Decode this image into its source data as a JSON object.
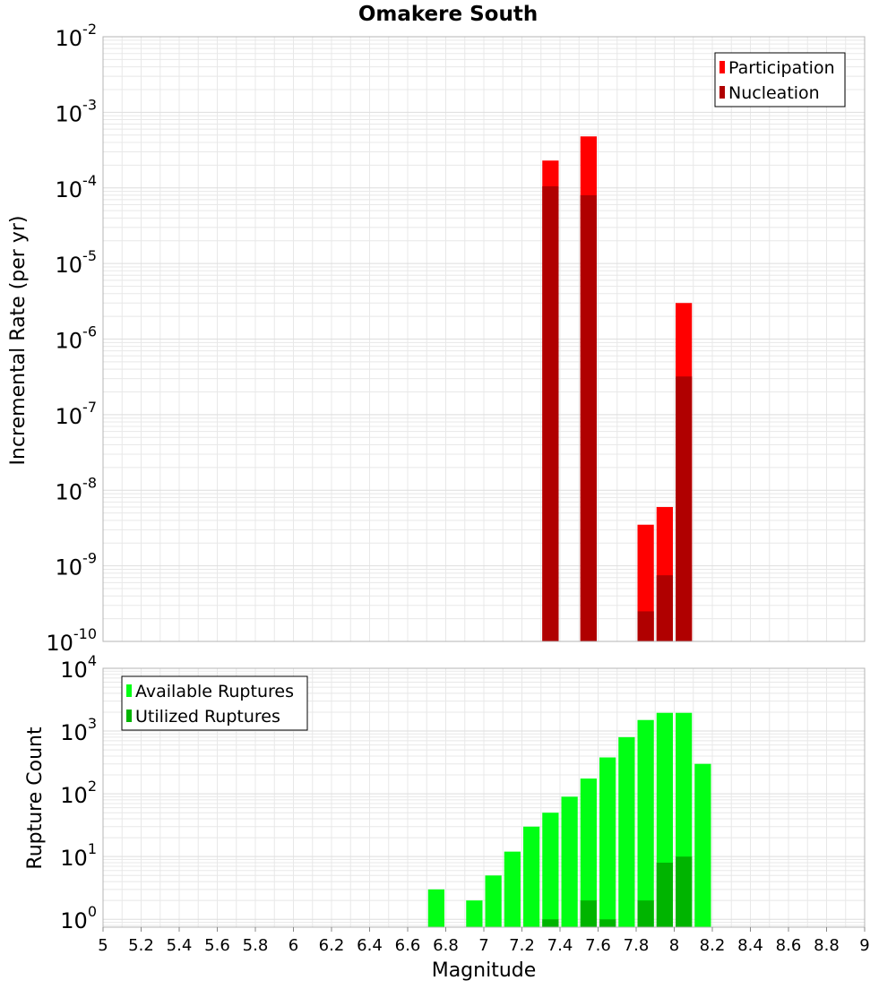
{
  "title": "Omakere South",
  "colors": {
    "participation": "#ff0000",
    "nucleation": "#b00000",
    "available": "#00ff14",
    "utilized": "#00b400",
    "grid": "#e8e8e8",
    "frame": "#b4b4b4"
  },
  "chart_data": [
    {
      "type": "bar",
      "yscale": "log",
      "title": "Omakere South",
      "ylabel": "Incremental Rate (per yr)",
      "xlabel": "",
      "xlim": [
        5,
        9
      ],
      "ylim": [
        1e-10,
        0.01
      ],
      "y_tick_exponents": [
        "-10",
        "-9",
        "-8",
        "-7",
        "-6",
        "-5",
        "-4",
        "-3",
        "-2"
      ],
      "y_tick_base": "10",
      "legend_position": "top-right",
      "bin_width": 0.1,
      "series": [
        {
          "name": "Participation",
          "color": "#ff0000",
          "points": [
            {
              "x": 7.35,
              "y": 0.00023
            },
            {
              "x": 7.55,
              "y": 0.00048
            },
            {
              "x": 7.85,
              "y": 3.5e-09
            },
            {
              "x": 7.95,
              "y": 6e-09
            },
            {
              "x": 8.05,
              "y": 3e-06
            }
          ]
        },
        {
          "name": "Nucleation",
          "color": "#b00000",
          "points": [
            {
              "x": 7.35,
              "y": 0.000105
            },
            {
              "x": 7.55,
              "y": 8e-05
            },
            {
              "x": 7.85,
              "y": 2.5e-10
            },
            {
              "x": 7.95,
              "y": 7.5e-10
            },
            {
              "x": 8.05,
              "y": 3.2e-07
            }
          ]
        }
      ]
    },
    {
      "type": "bar",
      "yscale": "log",
      "title": "",
      "ylabel": "Rupture Count",
      "xlabel": "Magnitude",
      "xlim": [
        5,
        9
      ],
      "ylim": [
        0.75,
        10000
      ],
      "y_tick_exponents": [
        "0",
        "1",
        "2",
        "3",
        "4"
      ],
      "y_tick_base": "10",
      "x_ticks": [
        "5",
        "5.2",
        "5.4",
        "5.6",
        "5.8",
        "6",
        "6.2",
        "6.4",
        "6.6",
        "6.8",
        "7",
        "7.2",
        "7.4",
        "7.6",
        "7.8",
        "8",
        "8.2",
        "8.4",
        "8.6",
        "8.8",
        "9"
      ],
      "legend_position": "top-left",
      "bin_width": 0.1,
      "series": [
        {
          "name": "Available Ruptures",
          "color": "#00ff14",
          "points": [
            {
              "x": 6.75,
              "y": 3
            },
            {
              "x": 6.95,
              "y": 2
            },
            {
              "x": 7.05,
              "y": 5
            },
            {
              "x": 7.15,
              "y": 12
            },
            {
              "x": 7.25,
              "y": 30
            },
            {
              "x": 7.35,
              "y": 50
            },
            {
              "x": 7.45,
              "y": 90
            },
            {
              "x": 7.55,
              "y": 175
            },
            {
              "x": 7.65,
              "y": 380
            },
            {
              "x": 7.75,
              "y": 800
            },
            {
              "x": 7.85,
              "y": 1500
            },
            {
              "x": 7.95,
              "y": 1950
            },
            {
              "x": 8.05,
              "y": 1950
            },
            {
              "x": 8.15,
              "y": 300
            }
          ]
        },
        {
          "name": "Utilized Ruptures",
          "color": "#00b400",
          "points": [
            {
              "x": 7.35,
              "y": 1
            },
            {
              "x": 7.55,
              "y": 2
            },
            {
              "x": 7.65,
              "y": 1
            },
            {
              "x": 7.85,
              "y": 2
            },
            {
              "x": 7.95,
              "y": 8
            },
            {
              "x": 8.05,
              "y": 10
            }
          ]
        }
      ]
    }
  ]
}
